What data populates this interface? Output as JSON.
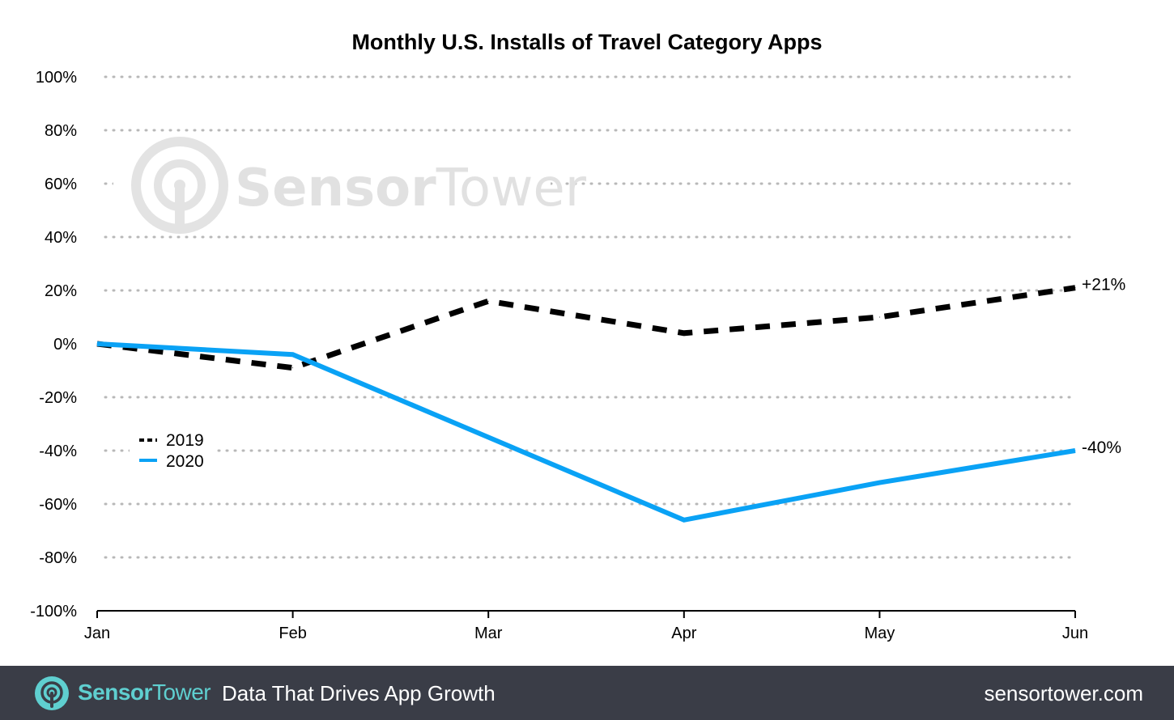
{
  "chart_data": {
    "type": "line",
    "title": "Monthly U.S. Installs of Travel Category Apps",
    "categories": [
      "Jan",
      "Feb",
      "Mar",
      "Apr",
      "May",
      "Jun"
    ],
    "ylim": [
      -100,
      100
    ],
    "yticks": [
      100,
      80,
      60,
      40,
      20,
      0,
      -20,
      -40,
      -60,
      -80,
      -100
    ],
    "ytick_labels": [
      "100%",
      "80%",
      "60%",
      "40%",
      "20%",
      "0%",
      "-20%",
      "-40%",
      "-60%",
      "-80%",
      "-100%"
    ],
    "xlabel": "",
    "ylabel": "",
    "grid": true,
    "legend_position": "left-middle",
    "series": [
      {
        "name": "2019",
        "values": [
          0,
          -9,
          16,
          4,
          10,
          21
        ],
        "color": "#000000",
        "style": "dashed",
        "end_label": "+21%"
      },
      {
        "name": "2020",
        "values": [
          0,
          -4,
          -35,
          -66,
          -52,
          -40
        ],
        "color": "#0aa2f5",
        "style": "solid",
        "end_label": "-40%"
      }
    ]
  },
  "watermark": {
    "brand_bold": "Sensor",
    "brand_light": "Tower"
  },
  "footer": {
    "brand_bold": "Sensor",
    "brand_light": "Tower",
    "tagline": "Data That Drives App Growth",
    "url": "sensortower.com",
    "accent_color": "#5fcfd0",
    "background_color": "#3a3d47"
  }
}
